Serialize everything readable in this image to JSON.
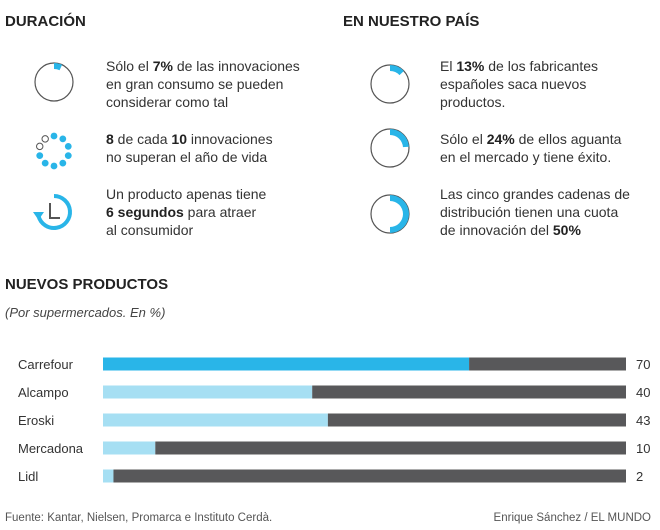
{
  "colors": {
    "accent": "#29b5e8",
    "light": "#a6dff3",
    "dark": "#58585a",
    "ring": "#555555"
  },
  "duracion": {
    "title": "DURACIÓN",
    "items": [
      {
        "icon": "pie-7-percent-icon",
        "pre": "Sólo el ",
        "bold": "7%",
        "post": " de las innovaciones",
        "line2": "en gran consumo se pueden",
        "line3": "considerar como tal"
      },
      {
        "icon": "dots-8-of-10-icon",
        "bold1": "8",
        "mid": " de cada ",
        "bold2": "10",
        "post": " innovaciones",
        "line2": "no superan el año de vida"
      },
      {
        "icon": "clock-rewind-icon",
        "line1": "Un producto apenas tiene",
        "bold": "6 segundos",
        "post": " para atraer",
        "line3": "al consumidor"
      }
    ]
  },
  "pais": {
    "title": "EN NUESTRO PAÍS",
    "items": [
      {
        "icon": "pie-13-percent-icon",
        "pre": "El ",
        "bold": "13%",
        "post": " de los fabricantes",
        "line2": "españoles saca nuevos",
        "line3": "productos."
      },
      {
        "icon": "pie-24-percent-icon",
        "pre": "Sólo el ",
        "bold": "24%",
        "post": " de ellos aguanta",
        "line2": "en el mercado y tiene éxito."
      },
      {
        "icon": "pie-50-percent-icon",
        "line1": "Las cinco grandes cadenas de",
        "line2": "distribución tienen una cuota",
        "pre3": "de innovación del ",
        "bold": "50%"
      }
    ]
  },
  "chart_title": "NUEVOS PRODUCTOS",
  "chart_subtitle": "(Por supermercados. En %)",
  "chart_data": {
    "type": "bar",
    "orientation": "horizontal",
    "stacked": true,
    "max": 100,
    "categories": [
      "Carrefour",
      "Alcampo",
      "Eroski",
      "Mercadona",
      "Lidl"
    ],
    "values": [
      70,
      40,
      43,
      10,
      2
    ],
    "highlight": "Carrefour"
  },
  "footer": {
    "source": "Fuente: Kantar, Nielsen, Promarca e Instituto Cerdà.",
    "credit": "Enrique Sánchez / EL MUNDO"
  }
}
